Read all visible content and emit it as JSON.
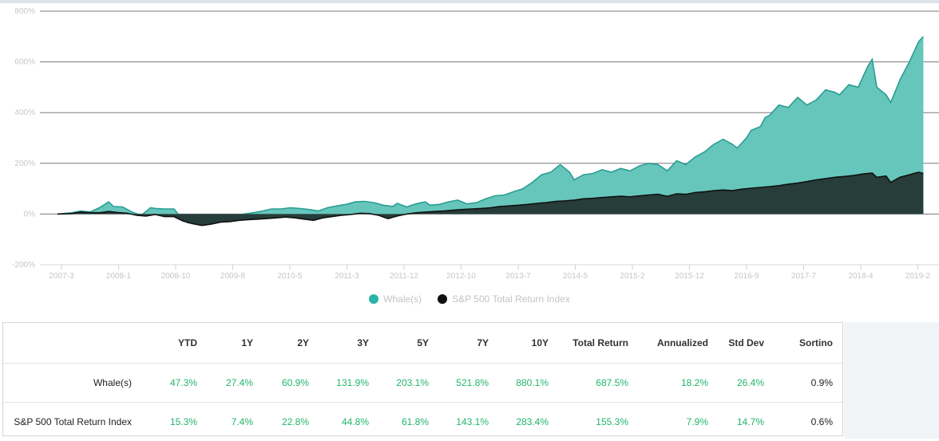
{
  "chart_data": {
    "type": "area",
    "y_ticks": [
      "800%",
      "600%",
      "400%",
      "200%",
      "0%",
      "-200%"
    ],
    "y_tick_values": [
      800,
      600,
      400,
      200,
      0,
      -200
    ],
    "ylim": [
      -200,
      800
    ],
    "x_ticks": [
      "2007-3",
      "2008-1",
      "2008-10",
      "2009-8",
      "2010-5",
      "2011-3",
      "2011-12",
      "2012-10",
      "2013-7",
      "2014-5",
      "2015-2",
      "2015-12",
      "2016-9",
      "2017-7",
      "2018-4",
      "2019-2"
    ],
    "grid": true,
    "legend_position": "bottom-center",
    "x_range_months": [
      0,
      146
    ],
    "series": [
      {
        "name": "Whale(s)",
        "color": "#5fc4ba",
        "points": [
          [
            0,
            0
          ],
          [
            3,
            5
          ],
          [
            5,
            12
          ],
          [
            7,
            8
          ],
          [
            9,
            25
          ],
          [
            11,
            48
          ],
          [
            12,
            30
          ],
          [
            14,
            28
          ],
          [
            16,
            8
          ],
          [
            18,
            -5
          ],
          [
            20,
            25
          ],
          [
            21,
            22
          ],
          [
            23,
            20
          ],
          [
            25,
            20
          ],
          [
            26,
            -2
          ],
          [
            27,
            -20
          ],
          [
            28,
            -35
          ],
          [
            30,
            -35
          ],
          [
            32,
            -28
          ],
          [
            35,
            -12
          ],
          [
            38,
            -10
          ],
          [
            40,
            0
          ],
          [
            42,
            5
          ],
          [
            44,
            12
          ],
          [
            46,
            20
          ],
          [
            48,
            20
          ],
          [
            50,
            25
          ],
          [
            52,
            22
          ],
          [
            54,
            18
          ],
          [
            56,
            12
          ],
          [
            58,
            25
          ],
          [
            60,
            32
          ],
          [
            62,
            38
          ],
          [
            64,
            48
          ],
          [
            66,
            50
          ],
          [
            68,
            45
          ],
          [
            70,
            35
          ],
          [
            72,
            30
          ],
          [
            73,
            42
          ],
          [
            75,
            28
          ],
          [
            77,
            40
          ],
          [
            79,
            48
          ],
          [
            80,
            35
          ],
          [
            82,
            38
          ],
          [
            84,
            48
          ],
          [
            86,
            55
          ],
          [
            88,
            40
          ],
          [
            90,
            45
          ],
          [
            92,
            60
          ],
          [
            94,
            72
          ],
          [
            96,
            75
          ],
          [
            98,
            88
          ],
          [
            100,
            100
          ],
          [
            102,
            125
          ],
          [
            104,
            155
          ],
          [
            106,
            165
          ],
          [
            108,
            195
          ],
          [
            110,
            165
          ],
          [
            111,
            135
          ],
          [
            113,
            155
          ],
          [
            115,
            160
          ],
          [
            117,
            175
          ],
          [
            119,
            165
          ],
          [
            121,
            180
          ],
          [
            123,
            170
          ],
          [
            125,
            190
          ],
          [
            127,
            200
          ],
          [
            129,
            195
          ],
          [
            131,
            170
          ],
          [
            133,
            210
          ],
          [
            135,
            195
          ],
          [
            137,
            225
          ],
          [
            139,
            245
          ],
          [
            141,
            275
          ],
          [
            143,
            295
          ],
          [
            145,
            275
          ],
          [
            146,
            260
          ],
          [
            148,
            300
          ],
          [
            149,
            330
          ],
          [
            151,
            345
          ],
          [
            152,
            380
          ],
          [
            153,
            390
          ],
          [
            155,
            430
          ],
          [
            157,
            420
          ],
          [
            159,
            460
          ],
          [
            161,
            430
          ],
          [
            163,
            450
          ],
          [
            165,
            490
          ],
          [
            167,
            480
          ],
          [
            168,
            470
          ],
          [
            170,
            510
          ],
          [
            172,
            500
          ],
          [
            174,
            580
          ],
          [
            175,
            610
          ],
          [
            176,
            500
          ],
          [
            178,
            470
          ],
          [
            179,
            440
          ],
          [
            181,
            530
          ],
          [
            183,
            600
          ],
          [
            185,
            680
          ],
          [
            186,
            700
          ]
        ]
      },
      {
        "name": "S&P 500 Total Return Index",
        "color": "#1a1a1a",
        "points": [
          [
            0,
            0
          ],
          [
            3,
            2
          ],
          [
            5,
            8
          ],
          [
            7,
            6
          ],
          [
            9,
            5
          ],
          [
            11,
            10
          ],
          [
            13,
            6
          ],
          [
            15,
            3
          ],
          [
            17,
            -5
          ],
          [
            19,
            -8
          ],
          [
            21,
            -2
          ],
          [
            23,
            -10
          ],
          [
            25,
            -10
          ],
          [
            27,
            -28
          ],
          [
            29,
            -38
          ],
          [
            31,
            -45
          ],
          [
            33,
            -40
          ],
          [
            35,
            -32
          ],
          [
            37,
            -30
          ],
          [
            39,
            -25
          ],
          [
            41,
            -22
          ],
          [
            43,
            -20
          ],
          [
            45,
            -18
          ],
          [
            47,
            -15
          ],
          [
            49,
            -12
          ],
          [
            51,
            -15
          ],
          [
            53,
            -20
          ],
          [
            55,
            -25
          ],
          [
            57,
            -15
          ],
          [
            59,
            -10
          ],
          [
            61,
            -5
          ],
          [
            63,
            -2
          ],
          [
            65,
            3
          ],
          [
            67,
            2
          ],
          [
            69,
            -5
          ],
          [
            71,
            -18
          ],
          [
            73,
            -8
          ],
          [
            75,
            0
          ],
          [
            77,
            5
          ],
          [
            79,
            8
          ],
          [
            81,
            10
          ],
          [
            83,
            12
          ],
          [
            85,
            15
          ],
          [
            87,
            18
          ],
          [
            89,
            20
          ],
          [
            91,
            22
          ],
          [
            93,
            25
          ],
          [
            95,
            30
          ],
          [
            97,
            32
          ],
          [
            99,
            35
          ],
          [
            101,
            38
          ],
          [
            103,
            42
          ],
          [
            105,
            45
          ],
          [
            107,
            50
          ],
          [
            109,
            52
          ],
          [
            111,
            55
          ],
          [
            113,
            60
          ],
          [
            115,
            62
          ],
          [
            117,
            65
          ],
          [
            119,
            68
          ],
          [
            121,
            70
          ],
          [
            123,
            68
          ],
          [
            125,
            72
          ],
          [
            127,
            75
          ],
          [
            129,
            78
          ],
          [
            131,
            70
          ],
          [
            133,
            80
          ],
          [
            135,
            78
          ],
          [
            137,
            85
          ],
          [
            139,
            88
          ],
          [
            141,
            92
          ],
          [
            143,
            95
          ],
          [
            145,
            92
          ],
          [
            147,
            98
          ],
          [
            149,
            102
          ],
          [
            151,
            105
          ],
          [
            153,
            108
          ],
          [
            155,
            112
          ],
          [
            157,
            118
          ],
          [
            159,
            122
          ],
          [
            161,
            128
          ],
          [
            163,
            135
          ],
          [
            165,
            140
          ],
          [
            167,
            145
          ],
          [
            169,
            148
          ],
          [
            171,
            152
          ],
          [
            173,
            158
          ],
          [
            175,
            162
          ],
          [
            176,
            145
          ],
          [
            178,
            150
          ],
          [
            179,
            125
          ],
          [
            181,
            145
          ],
          [
            183,
            155
          ],
          [
            185,
            165
          ],
          [
            186,
            160
          ]
        ]
      }
    ]
  },
  "legend": [
    {
      "label": "Whale(s)",
      "color": "#2ab4a8"
    },
    {
      "label": "S&P 500 Total Return Index",
      "color": "#111111"
    }
  ],
  "table": {
    "headers": [
      "",
      "YTD",
      "1Y",
      "2Y",
      "3Y",
      "5Y",
      "7Y",
      "10Y",
      "Total Return",
      "Annualized",
      "Std Dev",
      "Sortino"
    ],
    "rows": [
      {
        "name": "Whale(s)",
        "values": [
          "47.3%",
          "27.4%",
          "60.9%",
          "131.9%",
          "203.1%",
          "521.8%",
          "880.1%",
          "687.5%",
          "18.2%",
          "26.4%",
          "0.9%"
        ]
      },
      {
        "name": "S&P 500 Total Return Index",
        "values": [
          "15.3%",
          "7.4%",
          "22.8%",
          "44.8%",
          "61.8%",
          "143.1%",
          "283.4%",
          "155.3%",
          "7.9%",
          "14.7%",
          "0.6%"
        ]
      }
    ]
  }
}
